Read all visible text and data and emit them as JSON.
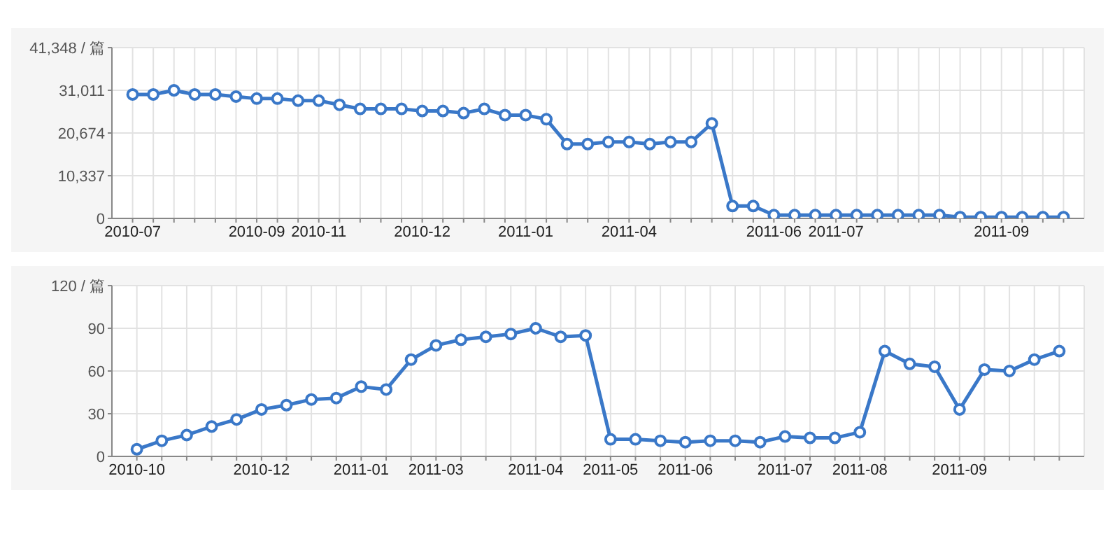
{
  "chart_data": [
    {
      "type": "line",
      "categories": [
        "2010-07",
        null,
        null,
        null,
        null,
        null,
        "2010-09",
        null,
        null,
        "2010-11",
        null,
        null,
        null,
        null,
        "2010-12",
        null,
        null,
        null,
        null,
        "2011-01",
        null,
        null,
        null,
        null,
        "2011-04",
        null,
        null,
        null,
        null,
        null,
        null,
        "2011-06",
        null,
        null,
        "2011-07",
        null,
        null,
        null,
        null,
        null,
        null,
        null,
        "2011-09",
        null,
        null,
        null
      ],
      "series": [
        {
          "color": "#3a78c8",
          "values": [
            30000,
            30000,
            31000,
            30000,
            30000,
            29500,
            29000,
            29000,
            28500,
            28500,
            27500,
            26500,
            26500,
            26500,
            26000,
            26000,
            25500,
            26500,
            25000,
            25000,
            24000,
            18000,
            18000,
            18500,
            18500,
            18000,
            18500,
            18500,
            23000,
            3000,
            3000,
            800,
            800,
            800,
            800,
            800,
            800,
            800,
            800,
            800,
            300,
            300,
            300,
            300,
            300,
            300
          ]
        }
      ],
      "ylim": [
        0,
        41348
      ],
      "yticks": [
        0,
        {
          "value": 10337,
          "label": "10,337"
        },
        {
          "value": 20674,
          "label": "20,674"
        },
        {
          "value": 31011,
          "label": "31,011"
        },
        {
          "value": 41348,
          "label": "41,348 / 篇"
        }
      ],
      "grid": true,
      "marker": "circle",
      "line_style": "solid",
      "legend": false
    },
    {
      "type": "line",
      "categories": [
        "2010-10",
        null,
        null,
        null,
        null,
        "2010-12",
        null,
        null,
        null,
        "2011-01",
        null,
        null,
        "2011-03",
        null,
        null,
        null,
        "2011-04",
        null,
        null,
        "2011-05",
        null,
        null,
        "2011-06",
        null,
        null,
        null,
        "2011-07",
        null,
        null,
        "2011-08",
        null,
        null,
        null,
        "2011-09",
        null,
        null,
        null,
        null
      ],
      "series": [
        {
          "color": "#3a78c8",
          "values": [
            5,
            11,
            15,
            21,
            26,
            33,
            36,
            40,
            41,
            49,
            47,
            68,
            78,
            82,
            84,
            86,
            90,
            84,
            85,
            12,
            12,
            11,
            10,
            11,
            11,
            10,
            14,
            13,
            13,
            17,
            74,
            65,
            63,
            33,
            61,
            60,
            68,
            74
          ]
        }
      ],
      "ylim": [
        0,
        120
      ],
      "yticks": [
        0,
        30,
        60,
        90,
        {
          "value": 120,
          "label": "120 / 篇"
        }
      ],
      "grid": true,
      "marker": "circle",
      "line_style": "solid",
      "legend": false
    }
  ]
}
